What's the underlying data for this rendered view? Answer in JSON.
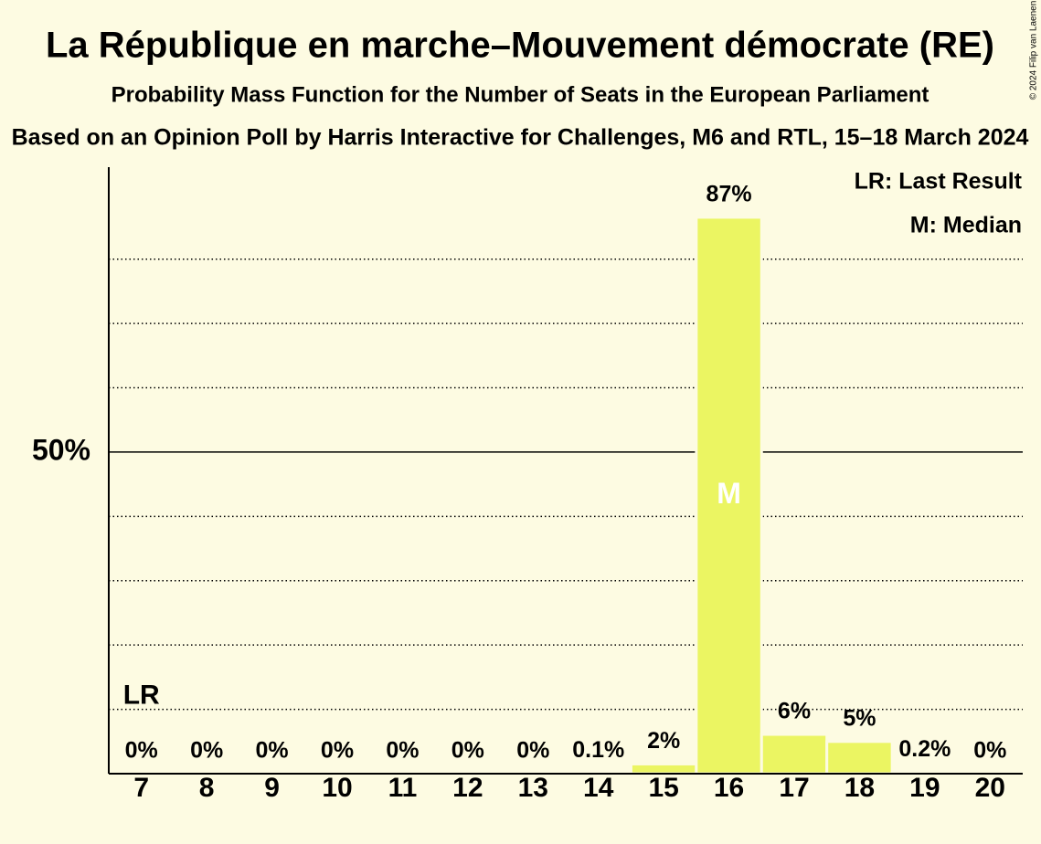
{
  "chart_data": {
    "type": "bar",
    "title": "La République en marche–Mouvement démocrate (RE)",
    "subtitle": "Probability Mass Function for the Number of Seats in the European Parliament",
    "caption": "Based on an Opinion Poll by Harris Interactive for Challenges, M6 and RTL, 15–18 March 2024",
    "copyright": "© 2024 Filip van Laenen",
    "x": [
      7,
      8,
      9,
      10,
      11,
      12,
      13,
      14,
      15,
      16,
      17,
      18,
      19,
      20
    ],
    "values": [
      0,
      0,
      0,
      0,
      0,
      0,
      0,
      0.1,
      1.5,
      86.5,
      6.1,
      5,
      0.2,
      0
    ],
    "value_labels": [
      "0%",
      "0%",
      "0%",
      "0%",
      "0%",
      "0%",
      "0%",
      "0.1%",
      "2%",
      "87%",
      "6%",
      "5%",
      "0.2%",
      "0%"
    ],
    "color": "#ebf562",
    "ylim": [
      0,
      94.3
    ],
    "yticks": [
      {
        "value": 50,
        "label": "50%"
      }
    ],
    "minor_yticks": [
      10,
      20,
      30,
      40,
      60,
      70,
      80
    ],
    "annotations": [
      {
        "text": "LR",
        "x": 7
      },
      {
        "text": "M",
        "x": 16
      }
    ],
    "legend": [
      "LR: Last Result",
      "M: Median"
    ]
  }
}
